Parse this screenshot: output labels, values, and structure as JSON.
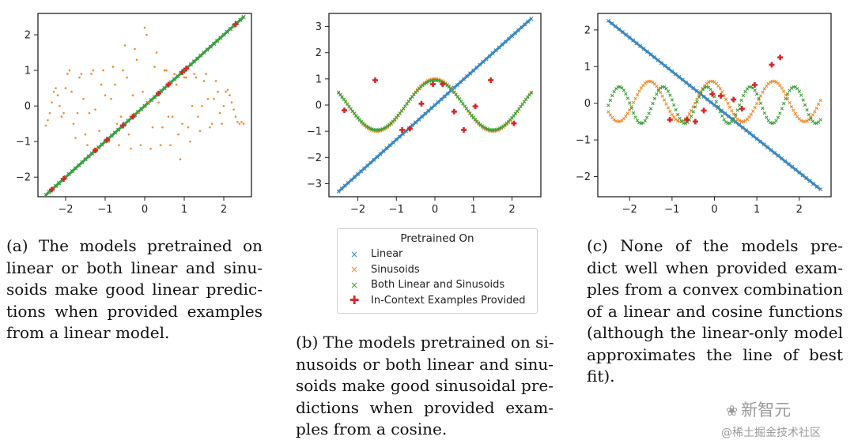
{
  "colors": {
    "linear": "#3a87c0",
    "sinusoids": "#f08a2c",
    "both": "#3aa03a",
    "examples": "#d62728"
  },
  "chart_data": [
    {
      "id": "a",
      "type": "scatter",
      "xlim": [
        -2.7,
        2.7
      ],
      "ylim": [
        -2.55,
        2.6
      ],
      "xticks": [
        -2,
        -1,
        0,
        1,
        2
      ],
      "yticks": [
        -2,
        -1,
        0,
        1,
        2
      ],
      "series": [
        {
          "kind": "line",
          "color_key": "linear",
          "x": [
            -2.5,
            2.5
          ],
          "y": [
            -2.5,
            2.5
          ]
        },
        {
          "kind": "line",
          "color_key": "both",
          "x": [
            -2.5,
            2.5
          ],
          "y": [
            -2.5,
            2.5
          ]
        },
        {
          "kind": "dots",
          "color_key": "sinusoids",
          "x": [
            -2.5,
            -2.45,
            -2.4,
            -2.35,
            -2.3,
            -2.25,
            -2.2,
            -2.15,
            -2.1,
            -2.05,
            -2.0,
            -1.95,
            -1.9,
            -1.85,
            -1.8,
            -1.75,
            -1.7,
            -1.65,
            -1.6,
            -1.55,
            -1.5,
            -1.45,
            -1.4,
            -1.35,
            -1.3,
            -1.25,
            -1.2,
            -1.15,
            -1.1,
            -1.05,
            -1.0,
            -0.95,
            -0.9,
            -0.85,
            -0.8,
            -0.75,
            -0.7,
            -0.65,
            -0.6,
            -0.55,
            -0.5,
            -0.45,
            -0.4,
            -0.35,
            -0.3,
            -0.25,
            -0.2,
            -0.15,
            -0.1,
            -0.05,
            0.0,
            0.05,
            0.1,
            0.15,
            0.2,
            0.25,
            0.3,
            0.35,
            0.4,
            0.45,
            0.5,
            0.55,
            0.6,
            0.65,
            0.7,
            0.75,
            0.8,
            0.85,
            0.9,
            0.95,
            1.0,
            1.05,
            1.1,
            1.15,
            1.2,
            1.25,
            1.3,
            1.35,
            1.4,
            1.45,
            1.5,
            1.55,
            1.6,
            1.65,
            1.7,
            1.75,
            1.8,
            1.85,
            1.9,
            1.95,
            2.0,
            2.05,
            2.1,
            2.15,
            2.2,
            2.25,
            2.3,
            2.35,
            2.4,
            2.45,
            2.5
          ],
          "y": [
            -0.55,
            -0.4,
            -0.2,
            0.1,
            0.4,
            0.5,
            0.3,
            0.0,
            -0.3,
            -0.2,
            0.5,
            0.9,
            1.0,
            0.4,
            -0.5,
            -0.9,
            -0.2,
            0.8,
            0.9,
            0.2,
            -0.8,
            -1.1,
            -0.2,
            0.9,
            1.0,
            -0.1,
            -1.2,
            -0.7,
            0.6,
            1.0,
            0.3,
            -0.9,
            -1.0,
            0.2,
            1.1,
            0.6,
            -0.5,
            -1.1,
            -0.3,
            1.0,
            1.7,
            0.8,
            -0.8,
            -1.2,
            0.3,
            1.6,
            1.3,
            -0.2,
            -1.1,
            0.4,
            2.2,
            2.0,
            0.1,
            -1.2,
            -0.6,
            1.1,
            1.5,
            0.1,
            -1.1,
            -0.6,
            1.0,
            1.0,
            -0.3,
            -1.1,
            -0.3,
            0.9,
            0.6,
            -0.8,
            -1.5,
            -0.5,
            0.8,
            0.8,
            -0.6,
            -1.0,
            0.0,
            0.9,
            0.8,
            -0.3,
            -0.7,
            0.0,
            0.7,
            0.9,
            0.2,
            -0.6,
            -0.5,
            0.2,
            0.7,
            0.4,
            -0.2,
            -0.5,
            0.0,
            0.4,
            0.45,
            0.3,
            0.1,
            -0.1,
            -0.3,
            -0.45,
            -0.5,
            -0.45,
            -0.5
          ]
        },
        {
          "kind": "examples",
          "color_key": "examples",
          "x": [
            -2.35,
            -2.05,
            -1.25,
            -0.95,
            -0.55,
            -0.3,
            0.35,
            0.6,
            0.95,
            1.05,
            2.3
          ],
          "y": [
            -2.35,
            -2.05,
            -1.25,
            -0.95,
            -0.55,
            -0.3,
            0.35,
            0.6,
            0.95,
            1.05,
            2.3
          ]
        }
      ]
    },
    {
      "id": "b",
      "type": "scatter",
      "xlim": [
        -2.75,
        2.75
      ],
      "ylim": [
        -3.5,
        3.5
      ],
      "xticks": [
        -2,
        -1,
        0,
        1,
        2
      ],
      "yticks": [
        -3,
        -2,
        -1,
        0,
        1,
        2,
        3
      ],
      "series": [
        {
          "kind": "line",
          "color_key": "linear",
          "x": [
            -2.5,
            2.5
          ],
          "y": [
            -3.3,
            3.3
          ]
        },
        {
          "kind": "cos",
          "color_key": "sinusoids",
          "x_range": [
            -2.5,
            2.5
          ],
          "amplitude": 1.0,
          "frequency": 2.09,
          "phase": 0.0
        },
        {
          "kind": "cos",
          "color_key": "both",
          "x_range": [
            -2.5,
            2.5
          ],
          "amplitude": 0.95,
          "frequency": 2.09,
          "phase": 0.0
        },
        {
          "kind": "examples",
          "color_key": "examples",
          "x": [
            -2.35,
            -1.55,
            -0.85,
            -0.65,
            -0.35,
            -0.05,
            0.2,
            0.5,
            0.75,
            1.05,
            1.45,
            2.05
          ],
          "y": [
            -0.2,
            0.95,
            -0.95,
            -0.9,
            0.05,
            0.8,
            0.8,
            -0.25,
            -0.95,
            -0.05,
            0.95,
            -0.7
          ]
        }
      ]
    },
    {
      "id": "c",
      "type": "scatter",
      "xlim": [
        -2.75,
        2.75
      ],
      "ylim": [
        -2.55,
        2.45
      ],
      "xticks": [
        -2,
        -1,
        0,
        1,
        2
      ],
      "yticks": [
        -2,
        -1,
        0,
        1,
        2
      ],
      "series": [
        {
          "kind": "line",
          "color_key": "linear",
          "x": [
            -2.5,
            2.5
          ],
          "y": [
            2.25,
            -2.35
          ]
        },
        {
          "kind": "cos",
          "color_key": "sinusoids",
          "x_range": [
            -2.5,
            2.5
          ],
          "amplitude": 0.55,
          "frequency": 4.3,
          "phase": 0.3,
          "offset": 0.05
        },
        {
          "kind": "cos",
          "color_key": "both",
          "x_range": [
            -2.5,
            2.5
          ],
          "amplitude": 0.5,
          "frequency": 6.1,
          "phase": 1.1,
          "offset": -0.05
        },
        {
          "kind": "examples",
          "color_key": "examples",
          "x": [
            -1.05,
            -0.65,
            -0.45,
            -0.25,
            -0.05,
            0.15,
            0.45,
            0.65,
            0.95,
            1.35,
            1.55
          ],
          "y": [
            -0.45,
            -0.45,
            -0.5,
            -0.2,
            0.25,
            0.2,
            0.1,
            -0.15,
            0.5,
            1.05,
            1.25
          ]
        }
      ]
    }
  ],
  "legend": {
    "title": "Pretrained On",
    "items": [
      {
        "label": "Linear",
        "marker": "×",
        "color_key": "linear"
      },
      {
        "label": "Sinusoids",
        "marker": "×",
        "color_key": "sinusoids"
      },
      {
        "label": "Both Linear and Sinusoids",
        "marker": "×",
        "color_key": "both"
      },
      {
        "label": "In-Context Examples Provided",
        "marker": "✚",
        "color_key": "examples"
      }
    ]
  },
  "captions": {
    "a": [
      "(a) The models pretrained on",
      "linear or both linear and sinu-",
      "soids make good linear predic-",
      "tions when provided examples",
      "from a linear model."
    ],
    "b": [
      "(b) The models pretrained on si-",
      "nusoids or both linear and sinu-",
      "soids make good sinusoidal pre-",
      "dictions when provided exam-",
      "ples from a cosine."
    ],
    "c": [
      "(c) None of the models pre-",
      "dict well when provided exam-",
      "ples from a convex combination",
      "of a linear and cosine functions",
      "(although the linear-only model",
      "approximates the line of best",
      "fit)."
    ]
  },
  "watermark": {
    "brand": "新智元",
    "site": "@稀土掘金技术社区"
  }
}
